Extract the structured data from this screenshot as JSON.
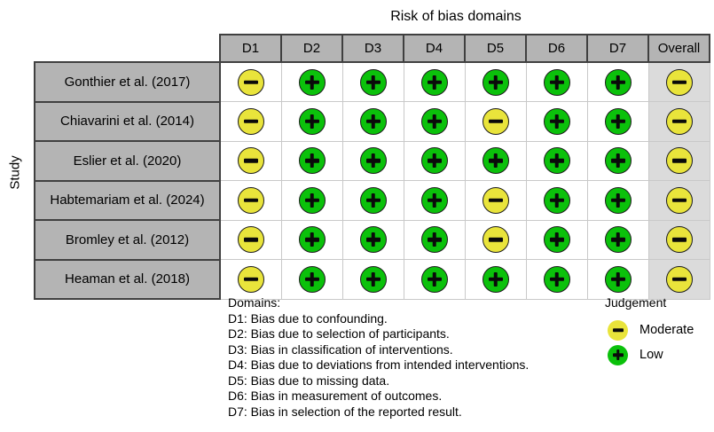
{
  "chart_data": {
    "type": "table",
    "title": "Risk of bias domains",
    "ylabel": "Study",
    "columns": [
      "D1",
      "D2",
      "D3",
      "D4",
      "D5",
      "D6",
      "D7",
      "Overall"
    ],
    "rows": [
      {
        "study": "Gonthier et al. (2017)",
        "judgements": [
          "moderate",
          "low",
          "low",
          "low",
          "low",
          "low",
          "low",
          "moderate"
        ]
      },
      {
        "study": "Chiavarini et al. (2014)",
        "judgements": [
          "moderate",
          "low",
          "low",
          "low",
          "moderate",
          "low",
          "low",
          "moderate"
        ]
      },
      {
        "study": "Eslier et al. (2020)",
        "judgements": [
          "moderate",
          "low",
          "low",
          "low",
          "low",
          "low",
          "low",
          "moderate"
        ]
      },
      {
        "study": "Habtemariam et al. (2024)",
        "judgements": [
          "moderate",
          "low",
          "low",
          "low",
          "moderate",
          "low",
          "low",
          "moderate"
        ]
      },
      {
        "study": "Bromley et al. (2012)",
        "judgements": [
          "moderate",
          "low",
          "low",
          "low",
          "moderate",
          "low",
          "low",
          "moderate"
        ]
      },
      {
        "study": "Heaman et al. (2018)",
        "judgements": [
          "moderate",
          "low",
          "low",
          "low",
          "low",
          "low",
          "low",
          "moderate"
        ]
      }
    ],
    "symbols": {
      "moderate": "-",
      "low": "+"
    },
    "colors": {
      "moderate": "#E9E43B",
      "low": "#0BC10B",
      "header_fill": "#B4B4B4",
      "overall_column_fill": "#DBDBDB"
    },
    "legend": {
      "title": "Judgement",
      "position": "bottom-right",
      "items": [
        {
          "judgement": "moderate",
          "label": "Moderate"
        },
        {
          "judgement": "low",
          "label": "Low"
        }
      ]
    },
    "footnote": {
      "heading": "Domains:",
      "lines": [
        "D1: Bias due to confounding.",
        "D2: Bias due to selection of participants.",
        "D3: Bias in classification of interventions.",
        "D4: Bias due to deviations from intended interventions.",
        "D5: Bias due to missing data.",
        "D6: Bias in measurement of outcomes.",
        "D7: Bias in selection of the reported result."
      ]
    }
  }
}
